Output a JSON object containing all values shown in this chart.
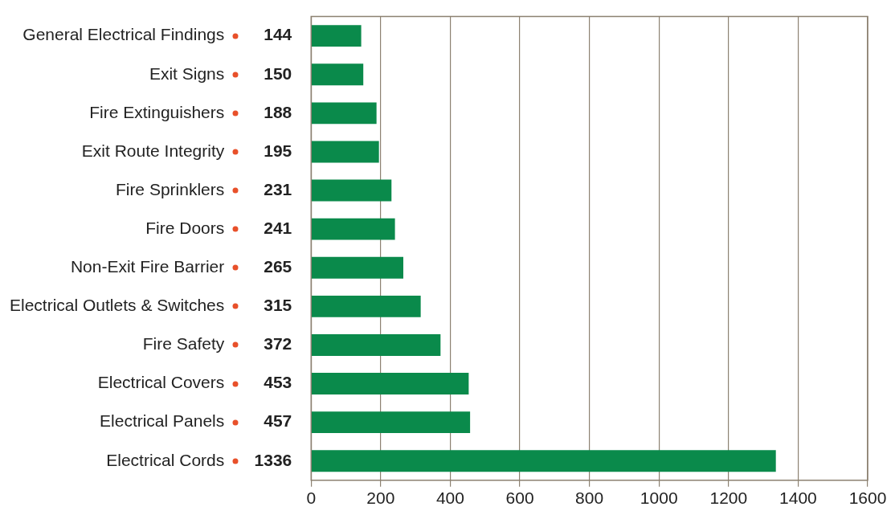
{
  "chart_data": {
    "type": "bar",
    "orientation": "horizontal",
    "categories": [
      "General Electrical Findings",
      "Exit Signs",
      "Fire Extinguishers",
      "Exit Route Integrity",
      "Fire Sprinklers",
      "Fire Doors",
      "Non-Exit Fire Barrier",
      "Electrical Outlets & Switches",
      "Fire Safety",
      "Electrical Covers",
      "Electrical Panels",
      "Electrical Cords"
    ],
    "values": [
      144,
      150,
      188,
      195,
      231,
      241,
      265,
      315,
      372,
      453,
      457,
      1336
    ],
    "color": "#0a8a4b",
    "xlim": [
      0,
      1600
    ],
    "xticks": [
      0,
      200,
      400,
      600,
      800,
      1000,
      1200,
      1400,
      1600
    ],
    "grid": "x",
    "legend": false,
    "data_labels": true
  }
}
